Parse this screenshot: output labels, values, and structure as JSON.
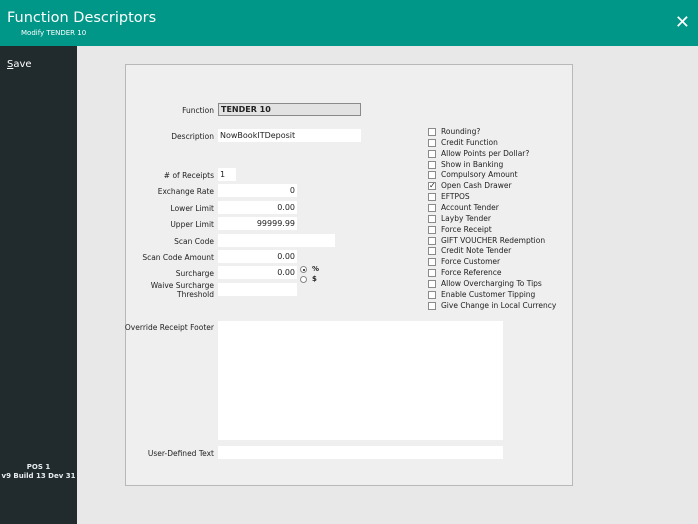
{
  "header": {
    "title": "Function Descriptors",
    "subtitle": "Modify TENDER 10",
    "close_icon": "close-icon"
  },
  "sidebar": {
    "save_label": "Save",
    "pos": "POS 1",
    "build": "v9 Build 13 Dev 31"
  },
  "form": {
    "function_label": "Function",
    "function_value": "TENDER 10",
    "description_label": "Description",
    "description_value": "NowBookITDeposit",
    "receipts_label": "# of Receipts",
    "receipts_value": "1",
    "exchange_label": "Exchange Rate",
    "exchange_value": "0",
    "lower_label": "Lower Limit",
    "lower_value": "0.00",
    "upper_label": "Upper Limit",
    "upper_value": "99999.99",
    "scan_label": "Scan Code",
    "scan_value": "",
    "scan_amount_label": "Scan Code Amount",
    "scan_amount_value": "0.00",
    "surcharge_label": "Surcharge",
    "surcharge_value": "0.00",
    "surcharge_percent": "%",
    "surcharge_dollar": "$",
    "surcharge_selected": "%",
    "waive_label_1": "Waive Surcharge",
    "waive_label_2": "Threshold",
    "waive_value": "",
    "footer_label": "Override Receipt Footer",
    "footer_value": "",
    "udt_label": "User-Defined Text",
    "udt_value": ""
  },
  "checkboxes": [
    {
      "label": "Rounding?",
      "checked": false
    },
    {
      "label": "Credit Function",
      "checked": false
    },
    {
      "label": "Allow Points per Dollar?",
      "checked": false
    },
    {
      "label": "Show in Banking",
      "checked": false
    },
    {
      "label": "Compulsory Amount",
      "checked": false
    },
    {
      "label": "Open Cash Drawer",
      "checked": true
    },
    {
      "label": "EFTPOS",
      "checked": false
    },
    {
      "label": "Account Tender",
      "checked": false
    },
    {
      "label": "Layby Tender",
      "checked": false
    },
    {
      "label": "Force Receipt",
      "checked": false
    },
    {
      "label": "GIFT VOUCHER Redemption",
      "checked": false
    },
    {
      "label": "Credit Note Tender",
      "checked": false
    },
    {
      "label": "Force Customer",
      "checked": false
    },
    {
      "label": "Force Reference",
      "checked": false
    },
    {
      "label": "Allow Overcharging To Tips",
      "checked": false
    },
    {
      "label": "Enable Customer Tipping",
      "checked": false
    },
    {
      "label": "Give Change in Local Currency",
      "checked": false
    }
  ],
  "colors": {
    "header": "#009688",
    "sidebar": "#212a2d"
  }
}
